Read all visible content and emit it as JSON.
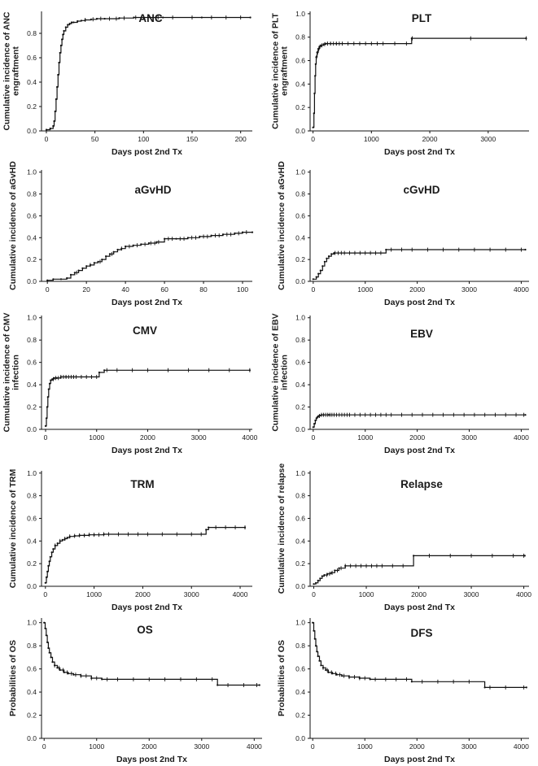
{
  "chart_data": [
    {
      "type": "line",
      "title": "ANC",
      "xlabel": "Days post 2nd Tx",
      "ylabel": [
        "Cumulative incidence of ANC",
        "engraftment"
      ],
      "xticks": [
        0,
        50,
        100,
        150,
        200
      ],
      "yticks": [
        0.0,
        0.2,
        0.4,
        0.6,
        0.8
      ],
      "ytick_labels": [
        "0.0",
        "0.2",
        "0.4",
        "0.6",
        "0.8"
      ],
      "xlim": [
        -5,
        212
      ],
      "ylim": [
        0,
        0.98
      ],
      "series": [
        {
          "name": "ANC engraftment",
          "step": true,
          "x": [
            0,
            4,
            7,
            8,
            9,
            10,
            11,
            12,
            13,
            14,
            15,
            16,
            17,
            18,
            20,
            22,
            24,
            26,
            28,
            32,
            36,
            40,
            46,
            52,
            60,
            75,
            90,
            120,
            160,
            210
          ],
          "y": [
            0.01,
            0.02,
            0.04,
            0.08,
            0.16,
            0.26,
            0.36,
            0.46,
            0.56,
            0.64,
            0.7,
            0.75,
            0.79,
            0.82,
            0.85,
            0.87,
            0.88,
            0.89,
            0.89,
            0.9,
            0.905,
            0.91,
            0.915,
            0.92,
            0.92,
            0.925,
            0.93,
            0.93,
            0.93,
            0.93
          ]
        }
      ],
      "censor_x": [
        40,
        48,
        56,
        65,
        72,
        80,
        92,
        100,
        115,
        130,
        150,
        170,
        185,
        200
      ]
    },
    {
      "type": "line",
      "title": "PLT",
      "xlabel": "Days post 2nd Tx",
      "ylabel": [
        "Cumulative incidence of PLT",
        "engraftment"
      ],
      "xticks": [
        0,
        1000,
        2000,
        3000
      ],
      "yticks": [
        0.0,
        0.2,
        0.4,
        0.6,
        0.8,
        1.0
      ],
      "ytick_labels": [
        "0.0",
        "0.2",
        "0.4",
        "0.6",
        "0.8",
        "1.0"
      ],
      "xlim": [
        -50,
        3700
      ],
      "ylim": [
        0,
        1.02
      ],
      "series": [
        {
          "name": "PLT engraftment",
          "step": true,
          "x": [
            0,
            15,
            25,
            35,
            45,
            55,
            70,
            90,
            110,
            140,
            180,
            220,
            300,
            400,
            1690,
            3650
          ],
          "y": [
            0.03,
            0.15,
            0.32,
            0.47,
            0.57,
            0.63,
            0.67,
            0.7,
            0.72,
            0.73,
            0.74,
            0.745,
            0.745,
            0.745,
            0.79,
            0.79
          ]
        }
      ],
      "censor_x": [
        60,
        80,
        100,
        120,
        150,
        200,
        250,
        300,
        350,
        400,
        450,
        500,
        600,
        700,
        800,
        900,
        1000,
        1100,
        1200,
        1400,
        1600,
        1700,
        2700,
        3650
      ]
    },
    {
      "type": "line",
      "title": "aGvHD",
      "xlabel": "Days post 2nd Tx",
      "ylabel": [
        "Cumulative incidence of aGvHD"
      ],
      "xticks": [
        0,
        20,
        40,
        60,
        80,
        100
      ],
      "yticks": [
        0.0,
        0.2,
        0.4,
        0.6,
        0.8,
        1.0
      ],
      "ytick_labels": [
        "0.0",
        "0.2",
        "0.4",
        "0.6",
        "0.8",
        "1.0"
      ],
      "xlim": [
        -3,
        105
      ],
      "ylim": [
        0,
        1.02
      ],
      "series": [
        {
          "name": "aGvHD",
          "step": true,
          "x": [
            0,
            3,
            7,
            10,
            12,
            14,
            16,
            18,
            20,
            22,
            24,
            26,
            28,
            30,
            32,
            34,
            36,
            38,
            40,
            44,
            48,
            52,
            56,
            60,
            66,
            72,
            78,
            84,
            90,
            96,
            100,
            105
          ],
          "y": [
            0.01,
            0.02,
            0.02,
            0.03,
            0.06,
            0.08,
            0.1,
            0.12,
            0.14,
            0.15,
            0.17,
            0.18,
            0.2,
            0.23,
            0.25,
            0.27,
            0.29,
            0.3,
            0.32,
            0.33,
            0.34,
            0.35,
            0.36,
            0.39,
            0.39,
            0.4,
            0.41,
            0.42,
            0.43,
            0.44,
            0.45,
            0.45
          ]
        }
      ],
      "censor_x": [
        15,
        22,
        27,
        33,
        38,
        42,
        46,
        50,
        53,
        55,
        57,
        62,
        64,
        68,
        70,
        74,
        76,
        80,
        82,
        86,
        88,
        92,
        94,
        98,
        102
      ]
    },
    {
      "type": "line",
      "title": "cGvHD",
      "xlabel": "Days post 2nd Tx",
      "ylabel": [
        "Cumulative incidence of aGvHD"
      ],
      "xticks": [
        0,
        1000,
        2000,
        3000,
        4000
      ],
      "yticks": [
        0.0,
        0.2,
        0.4,
        0.6,
        0.8,
        1.0
      ],
      "ytick_labels": [
        "0.0",
        "0.2",
        "0.4",
        "0.6",
        "0.8",
        "1.0"
      ],
      "xlim": [
        -60,
        4150
      ],
      "ylim": [
        0,
        1.02
      ],
      "series": [
        {
          "name": "cGvHD",
          "step": true,
          "x": [
            0,
            60,
            100,
            140,
            180,
            220,
            260,
            300,
            350,
            400,
            1400,
            4080
          ],
          "y": [
            0.02,
            0.04,
            0.07,
            0.1,
            0.14,
            0.18,
            0.21,
            0.23,
            0.25,
            0.26,
            0.29,
            0.29
          ]
        }
      ],
      "censor_x": [
        420,
        480,
        540,
        600,
        700,
        800,
        900,
        1000,
        1100,
        1200,
        1300,
        1500,
        1700,
        1900,
        2200,
        2500,
        2800,
        3100,
        3400,
        3700,
        4000
      ]
    },
    {
      "type": "line",
      "title": "CMV",
      "xlabel": "Days post 2nd Tx",
      "ylabel": [
        "Cumulative incidence of CMV",
        "infection"
      ],
      "xticks": [
        0,
        1000,
        2000,
        3000,
        4000
      ],
      "yticks": [
        0.0,
        0.2,
        0.4,
        0.6,
        0.8,
        1.0
      ],
      "ytick_labels": [
        "0.0",
        "0.2",
        "0.4",
        "0.6",
        "0.8",
        "1.0"
      ],
      "xlim": [
        -80,
        4050
      ],
      "ylim": [
        0,
        1.02
      ],
      "series": [
        {
          "name": "CMV infection",
          "step": true,
          "x": [
            0,
            15,
            30,
            45,
            60,
            80,
            100,
            130,
            170,
            220,
            300,
            400,
            1050,
            1150,
            4000
          ],
          "y": [
            0.03,
            0.1,
            0.2,
            0.29,
            0.36,
            0.41,
            0.44,
            0.45,
            0.46,
            0.46,
            0.47,
            0.47,
            0.51,
            0.53,
            0.53
          ]
        }
      ],
      "censor_x": [
        150,
        200,
        250,
        300,
        350,
        400,
        450,
        500,
        550,
        600,
        700,
        800,
        900,
        1000,
        1200,
        1400,
        1700,
        2000,
        2400,
        2800,
        3200,
        3600,
        4000
      ]
    },
    {
      "type": "line",
      "title": "EBV",
      "xlabel": "Days post 2nd Tx",
      "ylabel": [
        "Cumulative incidence of EBV",
        "infection"
      ],
      "xticks": [
        0,
        1000,
        2000,
        3000,
        4000
      ],
      "yticks": [
        0.0,
        0.2,
        0.4,
        0.6,
        0.8,
        1.0
      ],
      "ytick_labels": [
        "0.0",
        "0.2",
        "0.4",
        "0.6",
        "0.8",
        "1.0"
      ],
      "xlim": [
        -60,
        4150
      ],
      "ylim": [
        0,
        1.02
      ],
      "series": [
        {
          "name": "EBV infection",
          "step": true,
          "x": [
            0,
            20,
            40,
            60,
            80,
            100,
            130,
            160,
            200,
            300,
            4080
          ],
          "y": [
            0.02,
            0.05,
            0.08,
            0.1,
            0.11,
            0.12,
            0.125,
            0.13,
            0.13,
            0.13,
            0.13
          ]
        }
      ],
      "censor_x": [
        120,
        160,
        200,
        240,
        280,
        320,
        360,
        400,
        450,
        500,
        550,
        600,
        650,
        700,
        800,
        900,
        1000,
        1100,
        1200,
        1300,
        1400,
        1500,
        1700,
        1900,
        2100,
        2300,
        2500,
        2700,
        2900,
        3100,
        3300,
        3500,
        3700,
        3900,
        4050
      ]
    },
    {
      "type": "line",
      "title": "TRM",
      "xlabel": "Days post 2nd Tx",
      "ylabel": [
        "Cumulative incidence of TRM"
      ],
      "xticks": [
        0,
        1000,
        2000,
        3000,
        4000
      ],
      "yticks": [
        0.0,
        0.2,
        0.4,
        0.6,
        0.8,
        1.0
      ],
      "ytick_labels": [
        "0.0",
        "0.2",
        "0.4",
        "0.6",
        "0.8",
        "1.0"
      ],
      "xlim": [
        -80,
        4250
      ],
      "ylim": [
        0,
        1.02
      ],
      "series": [
        {
          "name": "TRM",
          "step": true,
          "x": [
            0,
            20,
            40,
            60,
            80,
            100,
            130,
            160,
            200,
            250,
            300,
            350,
            400,
            450,
            500,
            600,
            700,
            800,
            900,
            1000,
            1200,
            3300,
            3350,
            4100
          ],
          "y": [
            0.03,
            0.08,
            0.13,
            0.18,
            0.22,
            0.26,
            0.3,
            0.33,
            0.36,
            0.38,
            0.4,
            0.41,
            0.42,
            0.43,
            0.44,
            0.445,
            0.45,
            0.45,
            0.455,
            0.455,
            0.46,
            0.5,
            0.52,
            0.52
          ]
        }
      ],
      "censor_x": [
        200,
        300,
        400,
        500,
        600,
        700,
        800,
        900,
        1000,
        1100,
        1200,
        1300,
        1500,
        1700,
        1900,
        2100,
        2400,
        2700,
        3000,
        3200,
        3500,
        3700,
        3900,
        4100
      ]
    },
    {
      "type": "line",
      "title": "Relapse",
      "xlabel": "Days post 2nd Tx",
      "ylabel": [
        "Cumulative incidence of relapse"
      ],
      "xticks": [
        0,
        1000,
        2000,
        3000,
        4000
      ],
      "yticks": [
        0.0,
        0.2,
        0.4,
        0.6,
        0.8,
        1.0
      ],
      "ytick_labels": [
        "0.0",
        "0.2",
        "0.4",
        "0.6",
        "0.8",
        "1.0"
      ],
      "xlim": [
        -70,
        4100
      ],
      "ylim": [
        0,
        1.02
      ],
      "series": [
        {
          "name": "Relapse",
          "step": true,
          "x": [
            0,
            40,
            80,
            120,
            160,
            200,
            260,
            330,
            400,
            480,
            600,
            1900,
            4020
          ],
          "y": [
            0.02,
            0.03,
            0.05,
            0.07,
            0.09,
            0.1,
            0.11,
            0.12,
            0.14,
            0.16,
            0.18,
            0.27,
            0.27
          ]
        }
      ],
      "censor_x": [
        250,
        300,
        350,
        450,
        520,
        600,
        700,
        800,
        900,
        1000,
        1100,
        1200,
        1300,
        1500,
        1700,
        2200,
        2600,
        3000,
        3400,
        3800,
        4000
      ]
    },
    {
      "type": "line",
      "title": "OS",
      "xlabel": "Days post 2nd Tx",
      "ylabel": [
        "Probabilities of OS"
      ],
      "xticks": [
        0,
        1000,
        2000,
        3000,
        4000
      ],
      "yticks": [
        0.0,
        0.2,
        0.4,
        0.6,
        0.8,
        1.0
      ],
      "ytick_labels": [
        "0.0",
        "0.2",
        "0.4",
        "0.6",
        "0.8",
        "1.0"
      ],
      "xlim": [
        -50,
        4150
      ],
      "ylim": [
        0,
        1.04
      ],
      "series": [
        {
          "name": "OS",
          "step": true,
          "x": [
            0,
            20,
            40,
            60,
            80,
            100,
            130,
            160,
            200,
            250,
            300,
            380,
            460,
            560,
            700,
            900,
            1100,
            3300,
            4100
          ],
          "y": [
            1.0,
            0.95,
            0.89,
            0.83,
            0.78,
            0.74,
            0.7,
            0.66,
            0.63,
            0.61,
            0.59,
            0.57,
            0.56,
            0.55,
            0.54,
            0.52,
            0.51,
            0.46,
            0.46
          ]
        }
      ],
      "censor_x": [
        200,
        280,
        360,
        440,
        520,
        600,
        700,
        800,
        900,
        1000,
        1200,
        1400,
        1700,
        2000,
        2300,
        2600,
        2900,
        3200,
        3500,
        3800,
        4050
      ]
    },
    {
      "type": "line",
      "title": "DFS",
      "xlabel": "Days post 2nd Tx",
      "ylabel": [
        "Probabilities of OS"
      ],
      "xticks": [
        0,
        1000,
        2000,
        3000,
        4000
      ],
      "yticks": [
        0.0,
        0.2,
        0.4,
        0.6,
        0.8,
        1.0
      ],
      "ytick_labels": [
        "0.0",
        "0.2",
        "0.4",
        "0.6",
        "0.8",
        "1.0"
      ],
      "xlim": [
        -50,
        4150
      ],
      "ylim": [
        0,
        1.04
      ],
      "series": [
        {
          "name": "DFS",
          "step": true,
          "x": [
            0,
            20,
            40,
            60,
            80,
            100,
            130,
            160,
            200,
            250,
            300,
            380,
            460,
            560,
            700,
            900,
            1100,
            1900,
            3300,
            4100
          ],
          "y": [
            1.0,
            0.93,
            0.86,
            0.8,
            0.75,
            0.71,
            0.67,
            0.63,
            0.61,
            0.59,
            0.57,
            0.56,
            0.55,
            0.54,
            0.53,
            0.52,
            0.51,
            0.49,
            0.44,
            0.44
          ]
        }
      ],
      "censor_x": [
        200,
        280,
        360,
        440,
        520,
        600,
        700,
        800,
        900,
        1000,
        1200,
        1400,
        1600,
        1800,
        2100,
        2400,
        2700,
        3000,
        3400,
        3700,
        4050
      ]
    }
  ]
}
